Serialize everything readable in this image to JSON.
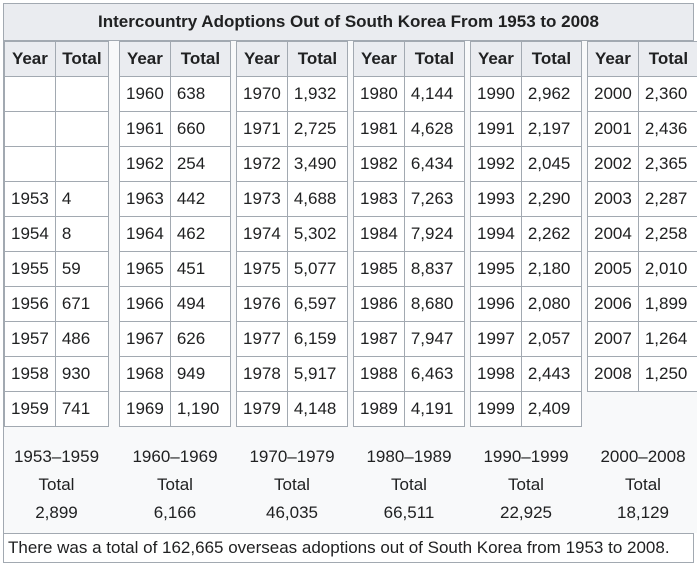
{
  "title": "Intercountry Adoptions Out of South Korea From 1953 to 2008",
  "headers": {
    "year": "Year",
    "total": "Total"
  },
  "decades": [
    {
      "rows": [
        {
          "year": "",
          "total": ""
        },
        {
          "year": "",
          "total": ""
        },
        {
          "year": "",
          "total": ""
        },
        {
          "year": "1953",
          "total": "4"
        },
        {
          "year": "1954",
          "total": "8"
        },
        {
          "year": "1955",
          "total": "59"
        },
        {
          "year": "1956",
          "total": "671"
        },
        {
          "year": "1957",
          "total": "486"
        },
        {
          "year": "1958",
          "total": "930"
        },
        {
          "year": "1959",
          "total": "741"
        }
      ],
      "range": "1953–1959",
      "total_label": "Total",
      "sum": "2,899"
    },
    {
      "rows": [
        {
          "year": "1960",
          "total": "638"
        },
        {
          "year": "1961",
          "total": "660"
        },
        {
          "year": "1962",
          "total": "254"
        },
        {
          "year": "1963",
          "total": "442"
        },
        {
          "year": "1964",
          "total": "462"
        },
        {
          "year": "1965",
          "total": "451"
        },
        {
          "year": "1966",
          "total": "494"
        },
        {
          "year": "1967",
          "total": "626"
        },
        {
          "year": "1968",
          "total": "949"
        },
        {
          "year": "1969",
          "total": "1,190"
        }
      ],
      "range": "1960–1969",
      "total_label": "Total",
      "sum": "6,166"
    },
    {
      "rows": [
        {
          "year": "1970",
          "total": "1,932"
        },
        {
          "year": "1971",
          "total": "2,725"
        },
        {
          "year": "1972",
          "total": "3,490"
        },
        {
          "year": "1973",
          "total": "4,688"
        },
        {
          "year": "1974",
          "total": "5,302"
        },
        {
          "year": "1975",
          "total": "5,077"
        },
        {
          "year": "1976",
          "total": "6,597"
        },
        {
          "year": "1977",
          "total": "6,159"
        },
        {
          "year": "1978",
          "total": "5,917"
        },
        {
          "year": "1979",
          "total": "4,148"
        }
      ],
      "range": "1970–1979",
      "total_label": "Total",
      "sum": "46,035"
    },
    {
      "rows": [
        {
          "year": "1980",
          "total": "4,144"
        },
        {
          "year": "1981",
          "total": "4,628"
        },
        {
          "year": "1982",
          "total": "6,434"
        },
        {
          "year": "1983",
          "total": "7,263"
        },
        {
          "year": "1984",
          "total": "7,924"
        },
        {
          "year": "1985",
          "total": "8,837"
        },
        {
          "year": "1986",
          "total": "8,680"
        },
        {
          "year": "1987",
          "total": "7,947"
        },
        {
          "year": "1988",
          "total": "6,463"
        },
        {
          "year": "1989",
          "total": "4,191"
        }
      ],
      "range": "1980–1989",
      "total_label": "Total",
      "sum": "66,511"
    },
    {
      "rows": [
        {
          "year": "1990",
          "total": "2,962"
        },
        {
          "year": "1991",
          "total": "2,197"
        },
        {
          "year": "1992",
          "total": "2,045"
        },
        {
          "year": "1993",
          "total": "2,290"
        },
        {
          "year": "1994",
          "total": "2,262"
        },
        {
          "year": "1995",
          "total": "2,180"
        },
        {
          "year": "1996",
          "total": "2,080"
        },
        {
          "year": "1997",
          "total": "2,057"
        },
        {
          "year": "1998",
          "total": "2,443"
        },
        {
          "year": "1999",
          "total": "2,409"
        }
      ],
      "range": "1990–1999",
      "total_label": "Total",
      "sum": "22,925"
    },
    {
      "rows": [
        {
          "year": "2000",
          "total": "2,360"
        },
        {
          "year": "2001",
          "total": "2,436"
        },
        {
          "year": "2002",
          "total": "2,365"
        },
        {
          "year": "2003",
          "total": "2,287"
        },
        {
          "year": "2004",
          "total": "2,258"
        },
        {
          "year": "2005",
          "total": "2,010"
        },
        {
          "year": "2006",
          "total": "1,899"
        },
        {
          "year": "2007",
          "total": "1,264"
        },
        {
          "year": "2008",
          "total": "1,250"
        }
      ],
      "range": "2000–2008",
      "total_label": "Total",
      "sum": "18,129"
    }
  ],
  "footer": "There was a total of 162,665 overseas adoptions out of South Korea from 1953 to 2008."
}
